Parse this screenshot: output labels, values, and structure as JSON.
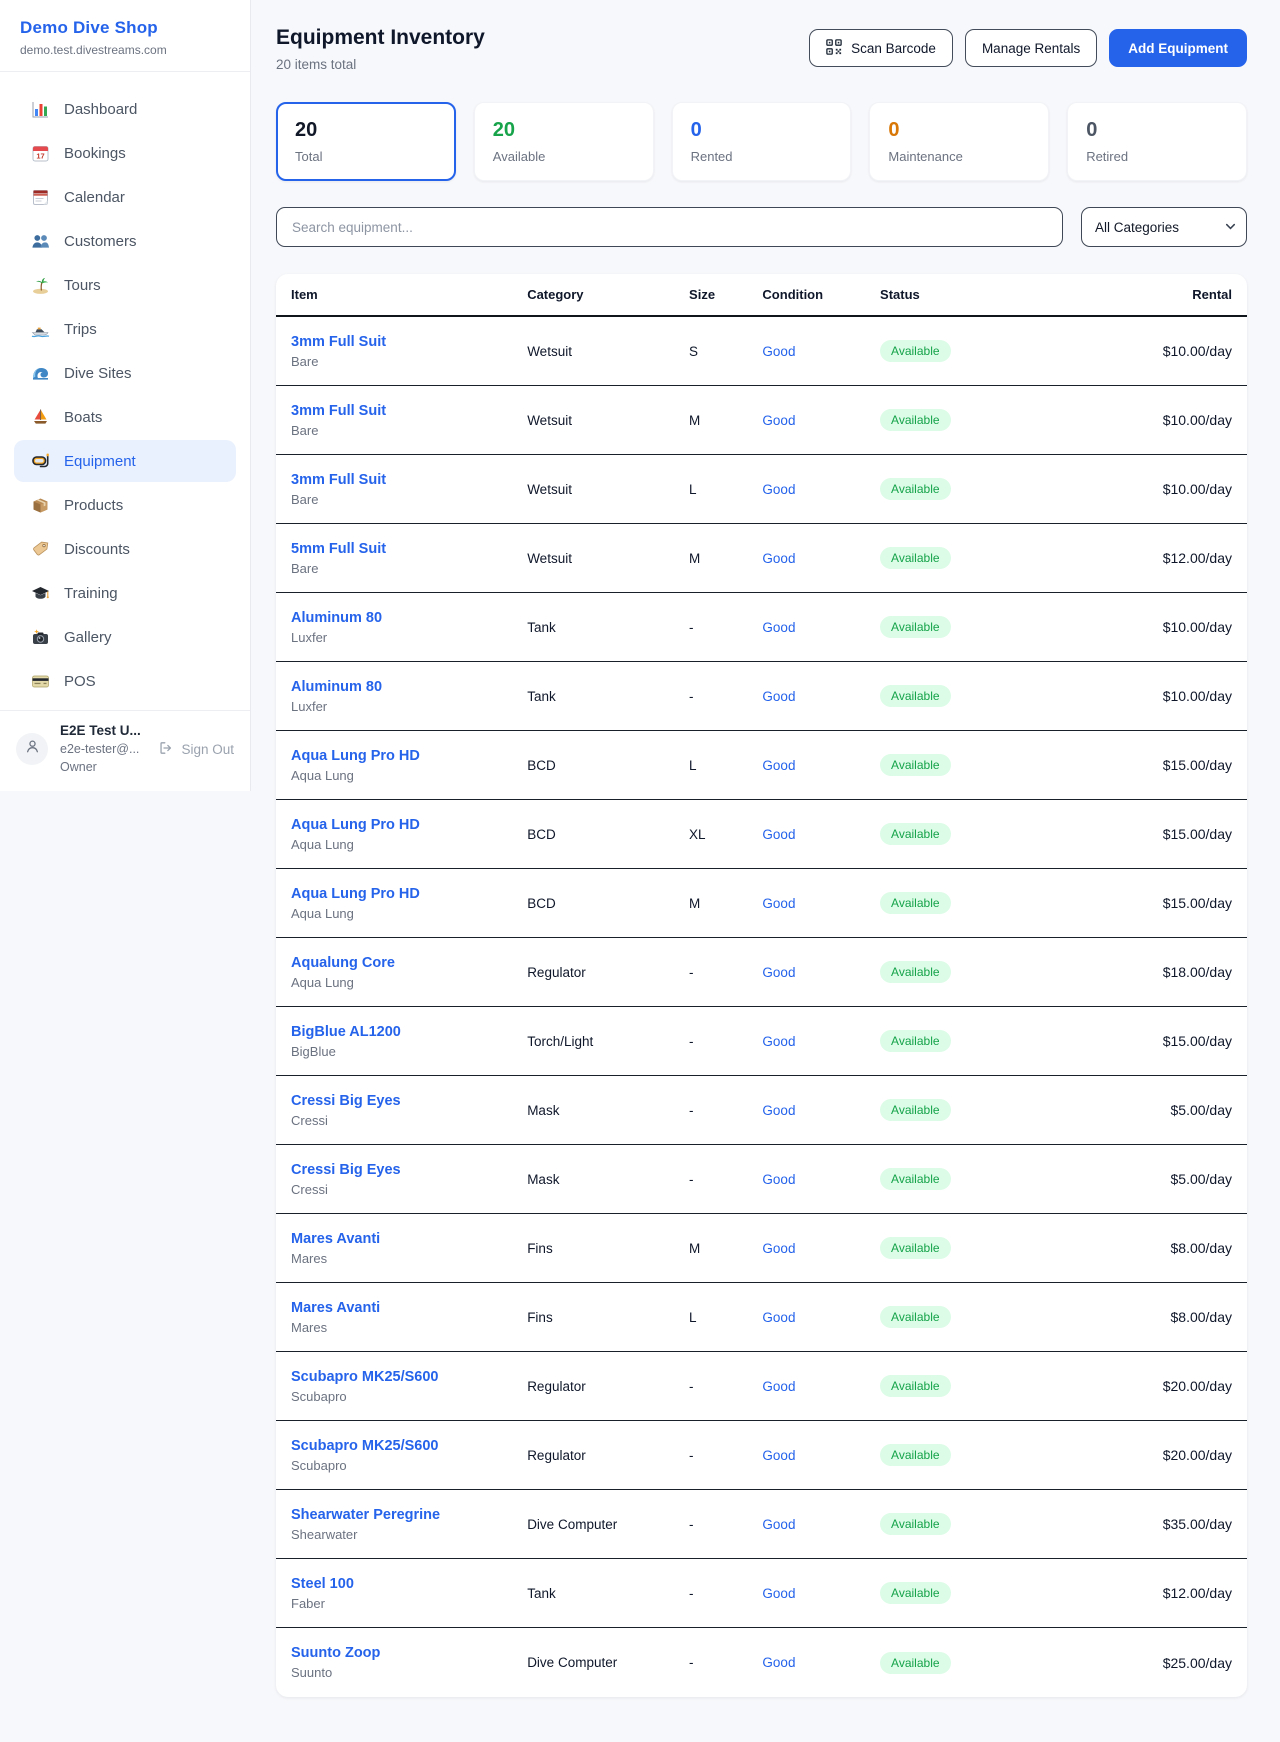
{
  "colors": {
    "accent": "#2563eb",
    "green": "#16a34a",
    "orange": "#d97706",
    "gray": "#4b5563",
    "badge_bg": "#dcfce7",
    "badge_text": "#16a34a",
    "active_nav_bg": "#e9f1fe"
  },
  "sidebar": {
    "brand": {
      "name": "Demo Dive Shop",
      "domain": "demo.test.divestreams.com"
    },
    "items": [
      {
        "id": "dashboard",
        "label": "Dashboard",
        "icon": "bar-chart",
        "active": false
      },
      {
        "id": "bookings",
        "label": "Bookings",
        "icon": "calendar-date",
        "active": false
      },
      {
        "id": "calendar",
        "label": "Calendar",
        "icon": "calendar-pad",
        "active": false
      },
      {
        "id": "customers",
        "label": "Customers",
        "icon": "people",
        "active": false
      },
      {
        "id": "tours",
        "label": "Tours",
        "icon": "palm-island",
        "active": false
      },
      {
        "id": "trips",
        "label": "Trips",
        "icon": "speedboat",
        "active": false
      },
      {
        "id": "dive-sites",
        "label": "Dive Sites",
        "icon": "wave",
        "active": false
      },
      {
        "id": "boats",
        "label": "Boats",
        "icon": "sailboat",
        "active": false
      },
      {
        "id": "equipment",
        "label": "Equipment",
        "icon": "dive-mask",
        "active": true
      },
      {
        "id": "products",
        "label": "Products",
        "icon": "package",
        "active": false
      },
      {
        "id": "discounts",
        "label": "Discounts",
        "icon": "tag",
        "active": false
      },
      {
        "id": "training",
        "label": "Training",
        "icon": "grad-cap",
        "active": false
      },
      {
        "id": "gallery",
        "label": "Gallery",
        "icon": "camera-flash",
        "active": false
      },
      {
        "id": "pos",
        "label": "POS",
        "icon": "credit-card",
        "active": false
      }
    ],
    "user": {
      "name": "E2E Test U...",
      "email": "e2e-tester@...",
      "role": "Owner",
      "signout_label": "Sign Out"
    }
  },
  "header": {
    "title": "Equipment Inventory",
    "subtitle": "20 items total",
    "buttons": {
      "scan_barcode": "Scan Barcode",
      "manage_rentals": "Manage Rentals",
      "add_equipment": "Add Equipment"
    }
  },
  "stats": [
    {
      "value": "20",
      "label": "Total",
      "value_color": "#111827",
      "active": true
    },
    {
      "value": "20",
      "label": "Available",
      "value_color": "#16a34a",
      "active": false
    },
    {
      "value": "0",
      "label": "Rented",
      "value_color": "#2563eb",
      "active": false
    },
    {
      "value": "0",
      "label": "Maintenance",
      "value_color": "#d97706",
      "active": false
    },
    {
      "value": "0",
      "label": "Retired",
      "value_color": "#4b5563",
      "active": false
    }
  ],
  "filters": {
    "search_placeholder": "Search equipment...",
    "category_selected": "All Categories",
    "category_options": [
      "All Categories"
    ]
  },
  "table": {
    "columns": [
      "Item",
      "Category",
      "Size",
      "Condition",
      "Status",
      "Rental"
    ],
    "rows": [
      {
        "name": "3mm Full Suit",
        "brand": "Bare",
        "category": "Wetsuit",
        "size": "S",
        "condition": "Good",
        "status": "Available",
        "rental": "$10.00/day"
      },
      {
        "name": "3mm Full Suit",
        "brand": "Bare",
        "category": "Wetsuit",
        "size": "M",
        "condition": "Good",
        "status": "Available",
        "rental": "$10.00/day"
      },
      {
        "name": "3mm Full Suit",
        "brand": "Bare",
        "category": "Wetsuit",
        "size": "L",
        "condition": "Good",
        "status": "Available",
        "rental": "$10.00/day"
      },
      {
        "name": "5mm Full Suit",
        "brand": "Bare",
        "category": "Wetsuit",
        "size": "M",
        "condition": "Good",
        "status": "Available",
        "rental": "$12.00/day"
      },
      {
        "name": "Aluminum 80",
        "brand": "Luxfer",
        "category": "Tank",
        "size": "-",
        "condition": "Good",
        "status": "Available",
        "rental": "$10.00/day"
      },
      {
        "name": "Aluminum 80",
        "brand": "Luxfer",
        "category": "Tank",
        "size": "-",
        "condition": "Good",
        "status": "Available",
        "rental": "$10.00/day"
      },
      {
        "name": "Aqua Lung Pro HD",
        "brand": "Aqua Lung",
        "category": "BCD",
        "size": "L",
        "condition": "Good",
        "status": "Available",
        "rental": "$15.00/day"
      },
      {
        "name": "Aqua Lung Pro HD",
        "brand": "Aqua Lung",
        "category": "BCD",
        "size": "XL",
        "condition": "Good",
        "status": "Available",
        "rental": "$15.00/day"
      },
      {
        "name": "Aqua Lung Pro HD",
        "brand": "Aqua Lung",
        "category": "BCD",
        "size": "M",
        "condition": "Good",
        "status": "Available",
        "rental": "$15.00/day"
      },
      {
        "name": "Aqualung Core",
        "brand": "Aqua Lung",
        "category": "Regulator",
        "size": "-",
        "condition": "Good",
        "status": "Available",
        "rental": "$18.00/day"
      },
      {
        "name": "BigBlue AL1200",
        "brand": "BigBlue",
        "category": "Torch/Light",
        "size": "-",
        "condition": "Good",
        "status": "Available",
        "rental": "$15.00/day"
      },
      {
        "name": "Cressi Big Eyes",
        "brand": "Cressi",
        "category": "Mask",
        "size": "-",
        "condition": "Good",
        "status": "Available",
        "rental": "$5.00/day"
      },
      {
        "name": "Cressi Big Eyes",
        "brand": "Cressi",
        "category": "Mask",
        "size": "-",
        "condition": "Good",
        "status": "Available",
        "rental": "$5.00/day"
      },
      {
        "name": "Mares Avanti",
        "brand": "Mares",
        "category": "Fins",
        "size": "M",
        "condition": "Good",
        "status": "Available",
        "rental": "$8.00/day"
      },
      {
        "name": "Mares Avanti",
        "brand": "Mares",
        "category": "Fins",
        "size": "L",
        "condition": "Good",
        "status": "Available",
        "rental": "$8.00/day"
      },
      {
        "name": "Scubapro MK25/S600",
        "brand": "Scubapro",
        "category": "Regulator",
        "size": "-",
        "condition": "Good",
        "status": "Available",
        "rental": "$20.00/day"
      },
      {
        "name": "Scubapro MK25/S600",
        "brand": "Scubapro",
        "category": "Regulator",
        "size": "-",
        "condition": "Good",
        "status": "Available",
        "rental": "$20.00/day"
      },
      {
        "name": "Shearwater Peregrine",
        "brand": "Shearwater",
        "category": "Dive Computer",
        "size": "-",
        "condition": "Good",
        "status": "Available",
        "rental": "$35.00/day"
      },
      {
        "name": "Steel 100",
        "brand": "Faber",
        "category": "Tank",
        "size": "-",
        "condition": "Good",
        "status": "Available",
        "rental": "$12.00/day"
      },
      {
        "name": "Suunto Zoop",
        "brand": "Suunto",
        "category": "Dive Computer",
        "size": "-",
        "condition": "Good",
        "status": "Available",
        "rental": "$25.00/day"
      }
    ]
  }
}
